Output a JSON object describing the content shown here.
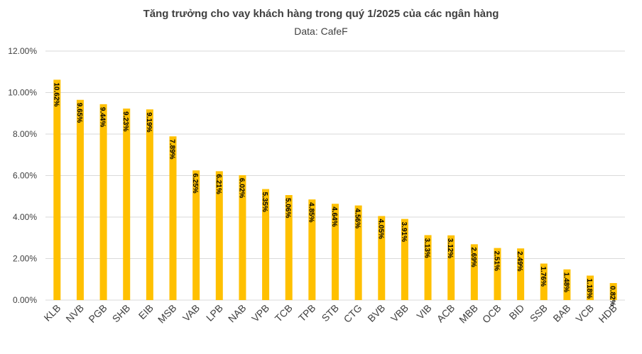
{
  "chart_data": {
    "type": "bar",
    "title": "Tăng trưởng cho vay khách hàng trong quý 1/2025 của các ngân hàng",
    "subtitle": "Data: CafeF",
    "categories": [
      "KLB",
      "NVB",
      "PGB",
      "SHB",
      "EIB",
      "MSB",
      "VAB",
      "LPB",
      "NAB",
      "VPB",
      "TCB",
      "TPB",
      "STB",
      "CTG",
      "BVB",
      "VBB",
      "VIB",
      "ACB",
      "MBB",
      "OCB",
      "BID",
      "SSB",
      "BAB",
      "VCB",
      "HDB"
    ],
    "values": [
      10.62,
      9.65,
      9.44,
      9.23,
      9.19,
      7.89,
      6.25,
      6.21,
      6.02,
      5.35,
      5.06,
      4.85,
      4.64,
      4.56,
      4.05,
      3.91,
      3.13,
      3.12,
      2.69,
      2.51,
      2.49,
      1.76,
      1.48,
      1.18,
      0.82
    ],
    "value_labels": [
      "10.62%",
      "9.65%",
      "9.44%",
      "9.23%",
      "9.19%",
      "7.89%",
      "6.25%",
      "6.21%",
      "6.02%",
      "5.35%",
      "5.06%",
      "4.85%",
      "4.64%",
      "4.56%",
      "4.05%",
      "3.91%",
      "3.13%",
      "3.12%",
      "2.69%",
      "2.51%",
      "2.49%",
      "1.76%",
      "1.48%",
      "1.18%",
      "0.82%"
    ],
    "color": "#FFC000",
    "ylim": [
      0,
      12
    ],
    "yticks": [
      {
        "value": 0,
        "label": "0.00%"
      },
      {
        "value": 2,
        "label": "2.00%"
      },
      {
        "value": 4,
        "label": "4.00%"
      },
      {
        "value": 6,
        "label": "6.00%"
      },
      {
        "value": 8,
        "label": "8.00%"
      },
      {
        "value": 10,
        "label": "10.00%"
      },
      {
        "value": 12,
        "label": "12.00%"
      }
    ],
    "grid": true
  }
}
